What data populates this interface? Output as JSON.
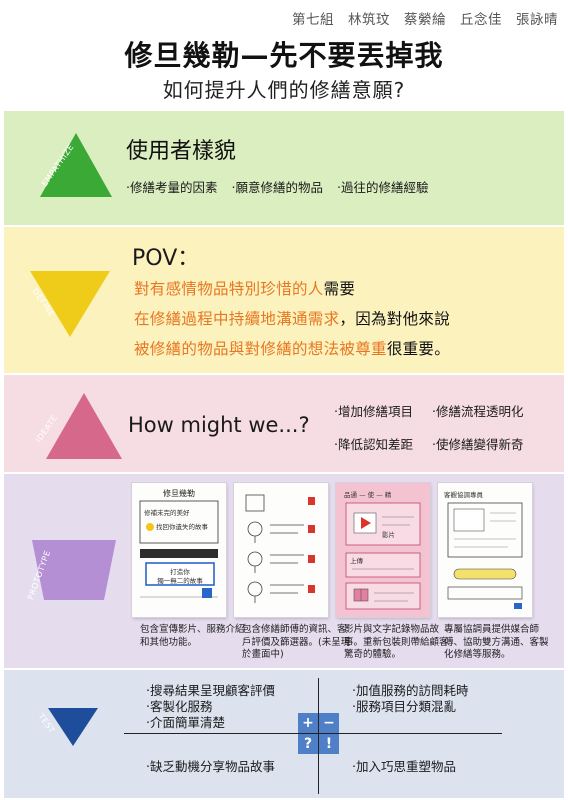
{
  "header": {
    "authors": "第七組　林筑玟　蔡縈綸　丘念佳　張詠晴",
    "title": "修旦幾勒—先不要丟掉我",
    "subtitle": "如何提升人們的修繕意願?"
  },
  "colors": {
    "empathize": "#3aa935",
    "define": "#f0cc1a",
    "ideate": "#d6698b",
    "prototype": "#b48fd3",
    "test": "#1e4d9c",
    "quadrant": "#4f7fc6",
    "accent_orange": "#e87722"
  },
  "empathize": {
    "label": "EMPATHIZE",
    "icon": "triangle-up",
    "title": "使用者樣貌",
    "points": [
      "‧修繕考量的因素",
      "‧願意修繕的物品",
      "‧過往的修繕經驗"
    ]
  },
  "define": {
    "label": "DEFINE",
    "icon": "triangle-down",
    "pov": "POV：",
    "line1_a": "對有感情物品特別珍惜的人",
    "line1_b": "需要",
    "line2_a": "在修繕過程中持續地溝通需求",
    "line2_b": "，因為對他來說",
    "line3_a": "被修繕的物品與對修繕的想法被尊重",
    "line3_b": "很重要。"
  },
  "ideate": {
    "label": "IDEATE",
    "icon": "triangle-up",
    "hmw": "How might we...?",
    "points": [
      "‧增加修繕項目",
      "‧修繕流程透明化",
      "‧降低認知差距",
      "‧使修繕變得新奇"
    ]
  },
  "prototype": {
    "label": "PROTOTYPE",
    "icon": "trapezoid",
    "sketches": [
      {
        "heading": "修旦幾勒",
        "line1": "修補未完的美好",
        "line2": "找回你遺失的故事",
        "box": "打造你",
        "box2": "獨一無二的故事"
      },
      {
        "heading": "",
        "line1": "",
        "line2": "",
        "box": "",
        "box2": ""
      },
      {
        "heading": "品通 — 使 — 精",
        "line1": "",
        "line2": "",
        "box": "上傳",
        "box2": "影片"
      },
      {
        "heading": "客觀協調專員",
        "line1": "",
        "line2": "",
        "box": "",
        "box2": ""
      }
    ],
    "captions": [
      "包含宣傳影片、服務介紹和其他功能。",
      "包含修繕師傅的資訊、客戶評價及篩選器。(未呈現於畫面中)",
      "影片與文字記錄物品故事。重新包裝則帶給顧客驚奇的體驗。",
      "專屬協調員提供媒合師傅、協助雙方溝通、客製化修繕等服務。"
    ]
  },
  "test": {
    "label": "TEST",
    "icon": "triangle-down",
    "plus": [
      "‧搜尋結果呈現顧客評價",
      "‧客製化服務",
      "‧介面簡單清楚"
    ],
    "minus": [
      "‧加值服務的訪問耗時",
      "‧服務項目分類混亂"
    ],
    "question": [
      "‧缺乏動機分享物品故事"
    ],
    "idea": [
      "‧加入巧思重塑物品"
    ],
    "symbols": {
      "plus": "+",
      "minus": "−",
      "question": "?",
      "idea": "!"
    }
  }
}
